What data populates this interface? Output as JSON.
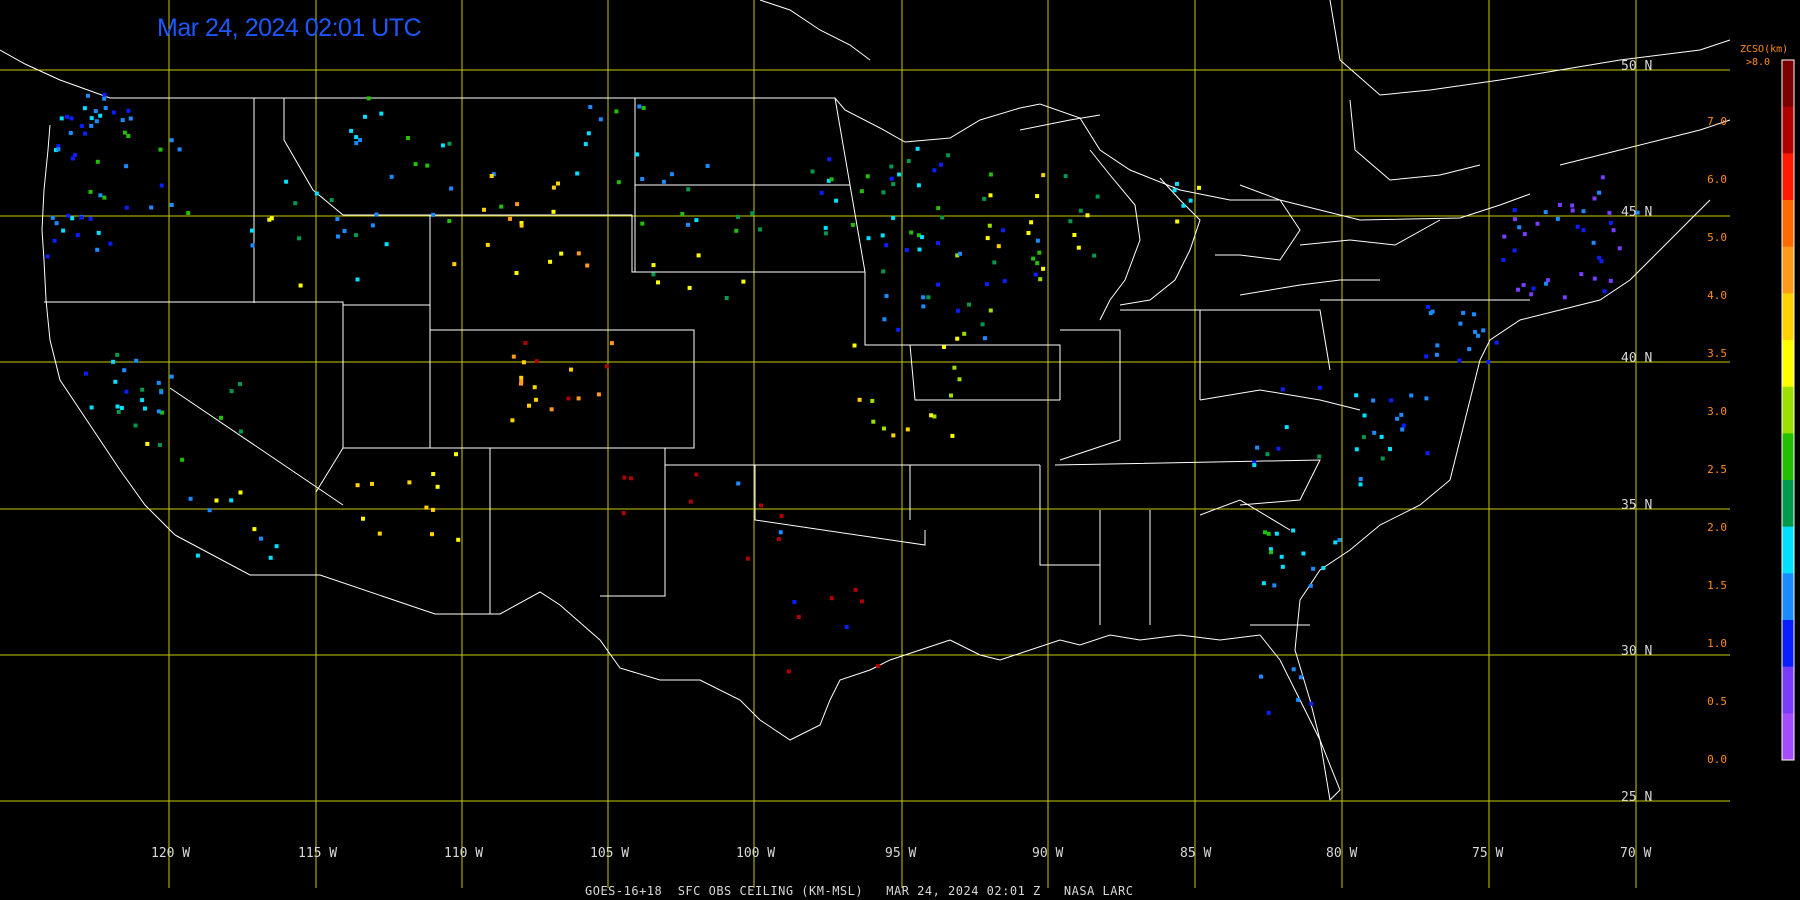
{
  "timestamp": "Mar 24, 2024 02:01 UTC",
  "footer": "GOES-16+18  SFC OBS CEILING (KM-MSL)   MAR 24, 2024 02:01 Z   NASA LARC",
  "lat_labels": [
    "50 N",
    "45 N",
    "40 N",
    "35 N",
    "30 N",
    "25 N"
  ],
  "lon_labels": [
    "120 W",
    "115 W",
    "110 W",
    "105 W",
    "100 W",
    "95 W",
    "90 W",
    "85 W",
    "80 W",
    "75 W",
    "70 W"
  ],
  "colorbar": {
    "title": "ZCSO(km)",
    "top_label": ">8.0",
    "labels": [
      "7.0",
      "6.0",
      "5.0",
      "4.0",
      "3.5",
      "3.0",
      "2.5",
      "2.0",
      "1.5",
      "1.0",
      "0.5",
      "0.0"
    ],
    "colors": [
      "#7a0000",
      "#b00000",
      "#ff1a00",
      "#ff6a00",
      "#ff9a1a",
      "#ffd200",
      "#ffff00",
      "#9be000",
      "#22c000",
      "#009a4a",
      "#00e0ff",
      "#1a8cff",
      "#0a1fff",
      "#7a3cff",
      "#a44cff"
    ]
  },
  "colors": {
    "grid": "#c8c800",
    "border": "#ffffff",
    "timestamp": "#1d58ff"
  }
}
